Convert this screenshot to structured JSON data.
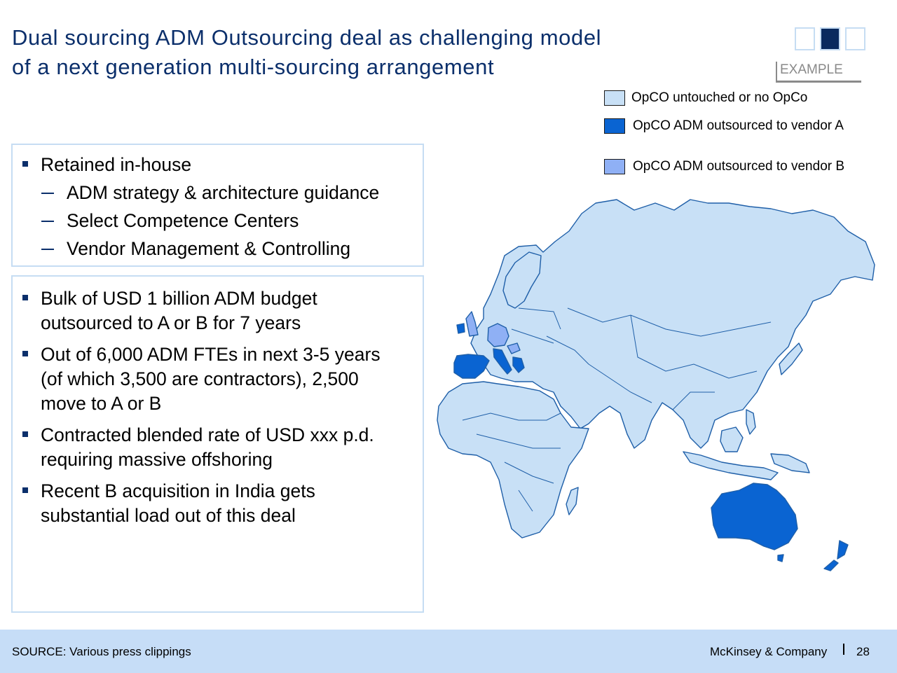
{
  "title": {
    "line1": "Dual sourcing ADM Outsourcing deal as challenging model",
    "line2": "of a next generation multi-sourcing arrangement"
  },
  "tag": "EXAMPLE",
  "legend": [
    {
      "label": "OpCO untouched or no OpCo",
      "color": "#c8e0f6"
    },
    {
      "label": "OpCO ADM outsourced to vendor A",
      "color": "#0a64d2"
    },
    {
      "label": "OpCO ADM outsourced to vendor B",
      "color": "#8fb0f5"
    }
  ],
  "box1": {
    "heading": "Retained in-house",
    "items": [
      "ADM strategy & architecture guidance",
      "Select Competence Centers",
      "Vendor Management & Controlling"
    ]
  },
  "box2": {
    "bullets": [
      {
        "line1": "Bulk of USD 1 billion ADM budget",
        "line2": "outsourced to A or B for 7 years"
      },
      {
        "line1": "Out of 6,000 ADM FTEs in next 3-5 years",
        "line2": "(of which 3,500 are contractors), 2,500",
        "line3": "move to A or B"
      },
      {
        "line1": "Contracted blended rate of USD xxx p.d.",
        "line2": "requiring massive offshoring"
      },
      {
        "line1": "Recent B acquisition in India gets",
        "line2": "substantial load out of this deal"
      }
    ]
  },
  "map_colors": {
    "outline": "#1f5fa8",
    "default": "#c8e0f6",
    "vendor_a": "#0a64d2",
    "vendor_b": "#8fb0f5"
  },
  "footer": {
    "source": "SOURCE: Various press clippings",
    "firm": "McKinsey & Company",
    "page": "28"
  }
}
